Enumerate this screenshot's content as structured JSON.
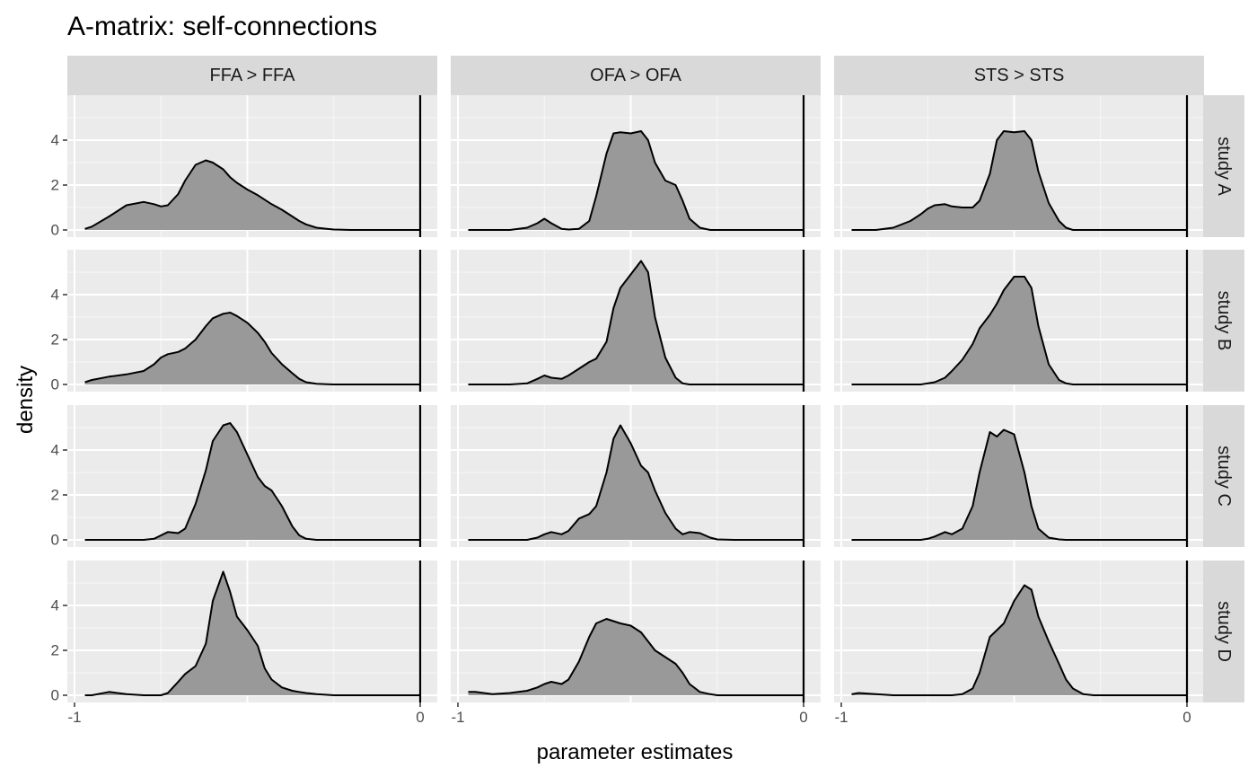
{
  "chart_data": {
    "type": "area",
    "title": "A-matrix: self-connections",
    "xlabel": "parameter estimates",
    "ylabel": "density",
    "xlim": [
      -1,
      0
    ],
    "ylim": [
      0,
      5.8
    ],
    "x_ticks": [
      -1,
      0
    ],
    "x_tick_labels": [
      "-1",
      "0"
    ],
    "y_ticks": [
      0,
      2,
      4
    ],
    "y_tick_labels": [
      "0",
      "2",
      "4"
    ],
    "vline": 0,
    "grid": true,
    "facet_cols": [
      "FFA > FFA",
      "OFA > OFA",
      "STS > STS"
    ],
    "facet_rows": [
      "study A",
      "study B",
      "study C",
      "study D"
    ],
    "x": [
      -0.97,
      -0.95,
      -0.9,
      -0.85,
      -0.8,
      -0.77,
      -0.75,
      -0.73,
      -0.7,
      -0.68,
      -0.65,
      -0.62,
      -0.6,
      -0.57,
      -0.55,
      -0.53,
      -0.5,
      -0.47,
      -0.45,
      -0.43,
      -0.4,
      -0.37,
      -0.35,
      -0.33,
      -0.3,
      -0.27,
      -0.25,
      -0.2,
      -0.15,
      -0.1,
      -0.05,
      0
    ],
    "panels": [
      {
        "row": "study A",
        "col": "FFA > FFA",
        "y": [
          0.05,
          0.15,
          0.6,
          1.1,
          1.25,
          1.15,
          1.05,
          1.1,
          1.6,
          2.2,
          2.9,
          3.1,
          3.0,
          2.7,
          2.35,
          2.1,
          1.8,
          1.55,
          1.35,
          1.15,
          0.9,
          0.6,
          0.4,
          0.25,
          0.1,
          0.05,
          0.02,
          0,
          0,
          0,
          0,
          0
        ]
      },
      {
        "row": "study A",
        "col": "OFA > OFA",
        "y": [
          0,
          0,
          0,
          0,
          0.1,
          0.3,
          0.5,
          0.3,
          0.05,
          0.02,
          0.05,
          0.4,
          1.5,
          3.4,
          4.3,
          4.35,
          4.3,
          4.4,
          4.0,
          3.0,
          2.2,
          2.0,
          1.3,
          0.5,
          0.1,
          0,
          0,
          0,
          0,
          0,
          0,
          0
        ]
      },
      {
        "row": "study A",
        "col": "STS > STS",
        "y": [
          0,
          0,
          0,
          0.1,
          0.4,
          0.7,
          0.95,
          1.1,
          1.15,
          1.05,
          1.0,
          1.0,
          1.3,
          2.5,
          4.0,
          4.4,
          4.35,
          4.4,
          4.0,
          2.6,
          1.2,
          0.4,
          0.1,
          0,
          0,
          0,
          0,
          0,
          0,
          0,
          0,
          0
        ]
      },
      {
        "row": "study B",
        "col": "FFA > FFA",
        "y": [
          0.1,
          0.2,
          0.35,
          0.45,
          0.6,
          0.9,
          1.2,
          1.35,
          1.45,
          1.6,
          2.0,
          2.6,
          2.95,
          3.15,
          3.2,
          3.05,
          2.75,
          2.3,
          1.9,
          1.4,
          0.9,
          0.5,
          0.25,
          0.1,
          0.03,
          0.01,
          0,
          0,
          0,
          0,
          0,
          0
        ]
      },
      {
        "row": "study B",
        "col": "OFA > OFA",
        "y": [
          0,
          0,
          0,
          0,
          0.05,
          0.25,
          0.4,
          0.3,
          0.25,
          0.4,
          0.7,
          1.0,
          1.15,
          1.9,
          3.4,
          4.3,
          4.9,
          5.5,
          5.0,
          3.0,
          1.2,
          0.3,
          0.05,
          0,
          0,
          0,
          0,
          0,
          0,
          0,
          0,
          0
        ]
      },
      {
        "row": "study B",
        "col": "STS > STS",
        "y": [
          0,
          0,
          0,
          0,
          0,
          0,
          0.05,
          0.1,
          0.3,
          0.6,
          1.1,
          1.8,
          2.5,
          3.1,
          3.6,
          4.2,
          4.8,
          4.8,
          4.3,
          2.6,
          0.9,
          0.2,
          0.05,
          0,
          0,
          0,
          0,
          0,
          0,
          0,
          0,
          0
        ]
      },
      {
        "row": "study C",
        "col": "FFA > FFA",
        "y": [
          0,
          0,
          0,
          0,
          0,
          0.05,
          0.2,
          0.35,
          0.3,
          0.5,
          1.6,
          3.1,
          4.4,
          5.1,
          5.2,
          4.8,
          3.8,
          2.8,
          2.4,
          2.2,
          1.5,
          0.6,
          0.2,
          0.05,
          0,
          0,
          0,
          0,
          0,
          0,
          0,
          0
        ]
      },
      {
        "row": "study C",
        "col": "OFA > OFA",
        "y": [
          0,
          0,
          0,
          0,
          0,
          0.1,
          0.25,
          0.35,
          0.25,
          0.4,
          0.95,
          1.15,
          1.5,
          3.0,
          4.5,
          5.1,
          4.3,
          3.3,
          3.0,
          2.2,
          1.2,
          0.5,
          0.25,
          0.35,
          0.3,
          0.1,
          0.02,
          0,
          0,
          0,
          0,
          0
        ]
      },
      {
        "row": "study C",
        "col": "STS > STS",
        "y": [
          0,
          0,
          0,
          0,
          0,
          0,
          0.05,
          0.15,
          0.35,
          0.25,
          0.5,
          1.5,
          3.0,
          4.8,
          4.6,
          4.9,
          4.7,
          3.0,
          1.5,
          0.5,
          0.1,
          0.02,
          0,
          0,
          0,
          0,
          0,
          0,
          0,
          0,
          0,
          0
        ]
      },
      {
        "row": "study D",
        "col": "FFA > FFA",
        "y": [
          0,
          0,
          0.15,
          0.05,
          0,
          0,
          0,
          0.1,
          0.6,
          0.95,
          1.3,
          2.3,
          4.2,
          5.5,
          4.6,
          3.5,
          2.9,
          2.2,
          1.2,
          0.7,
          0.35,
          0.2,
          0.15,
          0.1,
          0.05,
          0.02,
          0,
          0,
          0,
          0,
          0,
          0
        ]
      },
      {
        "row": "study D",
        "col": "OFA > OFA",
        "y": [
          0.15,
          0.15,
          0.05,
          0.1,
          0.2,
          0.35,
          0.5,
          0.6,
          0.5,
          0.7,
          1.5,
          2.6,
          3.2,
          3.4,
          3.3,
          3.2,
          3.1,
          2.8,
          2.4,
          2.0,
          1.7,
          1.4,
          1.0,
          0.5,
          0.15,
          0.05,
          0,
          0,
          0,
          0,
          0,
          0
        ]
      },
      {
        "row": "study D",
        "col": "STS > STS",
        "y": [
          0.05,
          0.1,
          0.05,
          0,
          0,
          0,
          0,
          0,
          0,
          0,
          0.05,
          0.3,
          1.0,
          2.6,
          2.9,
          3.2,
          4.2,
          4.9,
          4.7,
          3.5,
          2.4,
          1.4,
          0.7,
          0.3,
          0.05,
          0,
          0,
          0,
          0,
          0,
          0,
          0
        ]
      }
    ]
  }
}
